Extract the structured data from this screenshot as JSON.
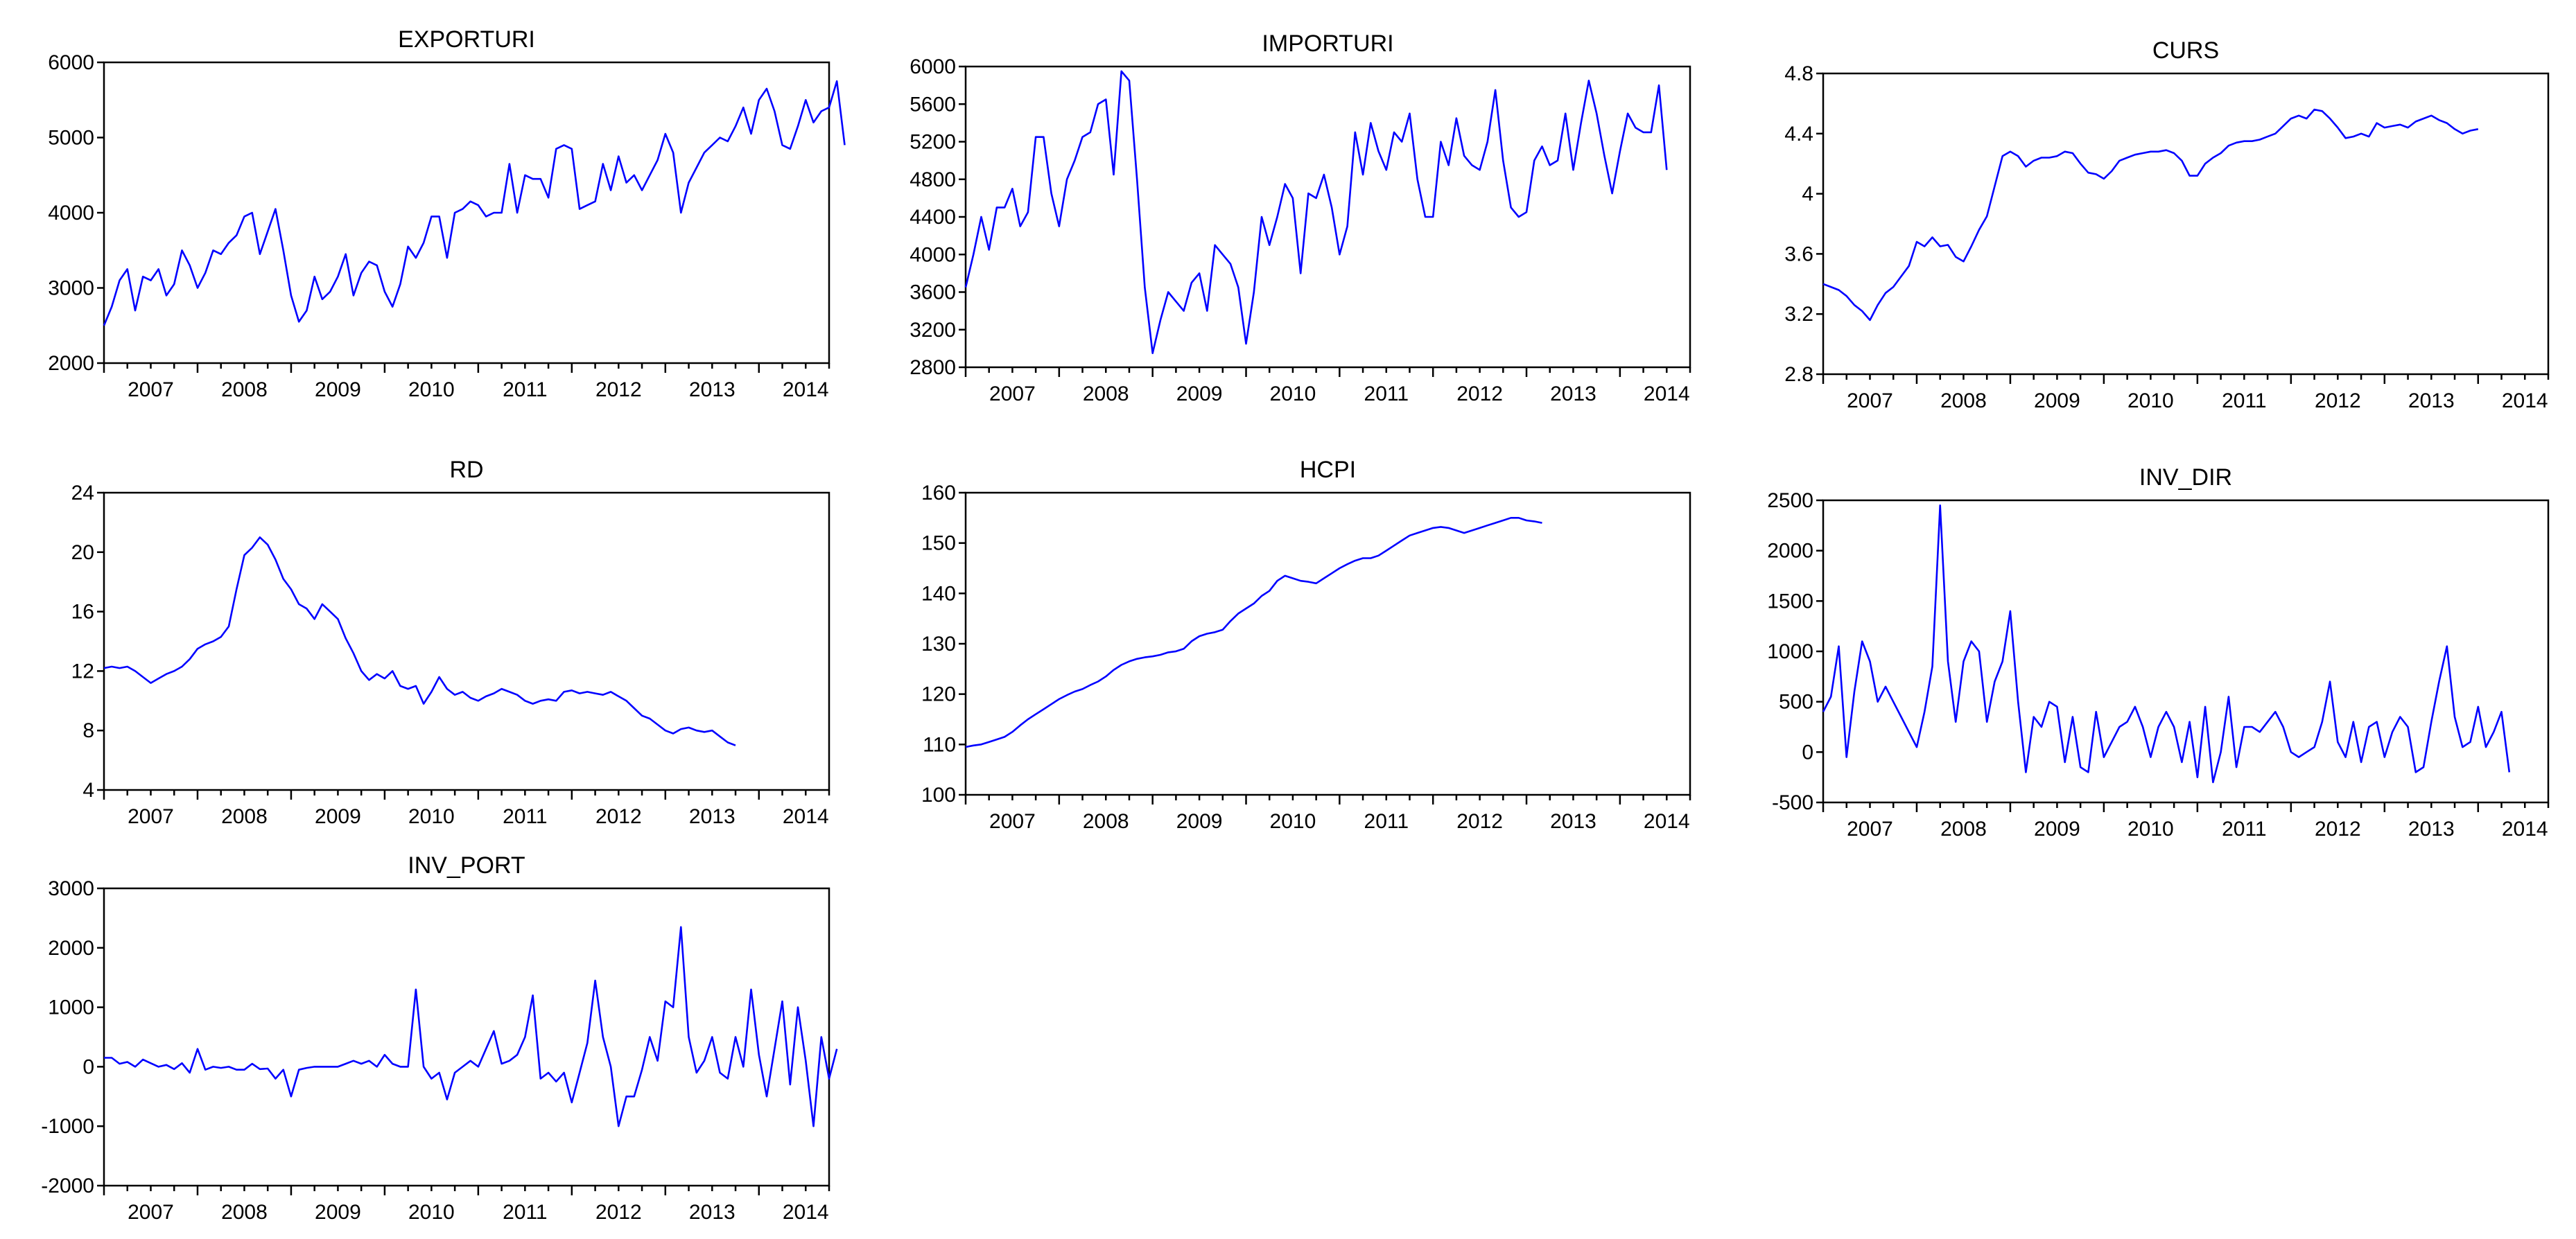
{
  "chart_data": [
    {
      "type": "line",
      "title": "EXPORTURI",
      "xlabel": "",
      "ylabel": "",
      "x_range": [
        2007.0,
        2014.75
      ],
      "ylim": [
        2000,
        6000
      ],
      "yticks": [
        2000,
        3000,
        4000,
        5000,
        6000
      ],
      "xticks": [
        "2007",
        "2008",
        "2009",
        "2010",
        "2011",
        "2012",
        "2013",
        "2014"
      ],
      "grid": false,
      "color": "#0000ff",
      "start": "2007-01",
      "frequency": "monthly",
      "values": [
        2500,
        2750,
        3100,
        3250,
        2700,
        3150,
        3100,
        3250,
        2900,
        3050,
        3500,
        3300,
        3000,
        3200,
        3500,
        3450,
        3600,
        3700,
        3950,
        4000,
        3450,
        3750,
        4050,
        3500,
        2900,
        2550,
        2700,
        3150,
        2850,
        2950,
        3150,
        3450,
        2900,
        3200,
        3350,
        3300,
        2950,
        2750,
        3050,
        3550,
        3400,
        3600,
        3950,
        3950,
        3400,
        4000,
        4050,
        4150,
        4100,
        3950,
        4000,
        4000,
        4650,
        4000,
        4500,
        4450,
        4450,
        4200,
        4850,
        4900,
        4850,
        4050,
        4100,
        4150,
        4650,
        4300,
        4750,
        4400,
        4500,
        4300,
        4500,
        4700,
        5050,
        4800,
        4000,
        4400,
        4600,
        4800,
        4900,
        5000,
        4950,
        5150,
        5400,
        5050,
        5500,
        5650,
        5350,
        4900,
        4850,
        5150,
        5500,
        5200,
        5350,
        5400,
        5750,
        4900
      ]
    },
    {
      "type": "line",
      "title": "IMPORTURI",
      "xlabel": "",
      "ylabel": "",
      "x_range": [
        2007.0,
        2014.75
      ],
      "ylim": [
        2800,
        6000
      ],
      "yticks": [
        2800,
        3200,
        3600,
        4000,
        4400,
        4800,
        5200,
        5600,
        6000
      ],
      "xticks": [
        "2007",
        "2008",
        "2009",
        "2010",
        "2011",
        "2012",
        "2013",
        "2014"
      ],
      "grid": false,
      "color": "#0000ff",
      "start": "2007-01",
      "frequency": "monthly",
      "values": [
        3650,
        4000,
        4400,
        4050,
        4500,
        4500,
        4700,
        4300,
        4450,
        5250,
        5250,
        4650,
        4300,
        4800,
        5000,
        5250,
        5300,
        5600,
        5650,
        4850,
        5950,
        5850,
        4800,
        3650,
        2950,
        3300,
        3600,
        3500,
        3400,
        3700,
        3800,
        3400,
        4100,
        4000,
        3900,
        3650,
        3050,
        3600,
        4400,
        4100,
        4400,
        4750,
        4600,
        3800,
        4650,
        4600,
        4850,
        4500,
        4000,
        4300,
        5300,
        4850,
        5400,
        5100,
        4900,
        5300,
        5200,
        5500,
        4800,
        4400,
        4400,
        5200,
        4950,
        5450,
        5050,
        4950,
        4900,
        5200,
        5750,
        5000,
        4500,
        4400,
        4450,
        5000,
        5150,
        4950,
        5000,
        5500,
        4900,
        5400,
        5850,
        5500,
        5050,
        4650,
        5100,
        5500,
        5350,
        5300,
        5300,
        5800,
        4900
      ]
    },
    {
      "type": "line",
      "title": "CURS",
      "xlabel": "",
      "ylabel": "",
      "x_range": [
        2007.0,
        2014.75
      ],
      "ylim": [
        2.8,
        4.8
      ],
      "yticks": [
        2.8,
        3.2,
        3.6,
        4.0,
        4.4,
        4.8
      ],
      "xticks": [
        "2007",
        "2008",
        "2009",
        "2010",
        "2011",
        "2012",
        "2013",
        "2014"
      ],
      "grid": false,
      "color": "#0000ff",
      "start": "2007-01",
      "frequency": "monthly",
      "values": [
        3.4,
        3.38,
        3.36,
        3.32,
        3.26,
        3.22,
        3.16,
        3.26,
        3.34,
        3.38,
        3.45,
        3.52,
        3.68,
        3.65,
        3.71,
        3.65,
        3.66,
        3.58,
        3.55,
        3.65,
        3.76,
        3.85,
        4.05,
        4.25,
        4.28,
        4.25,
        4.18,
        4.22,
        4.24,
        4.24,
        4.25,
        4.28,
        4.27,
        4.2,
        4.14,
        4.13,
        4.1,
        4.15,
        4.22,
        4.24,
        4.26,
        4.27,
        4.28,
        4.28,
        4.29,
        4.27,
        4.22,
        4.12,
        4.12,
        4.2,
        4.24,
        4.27,
        4.32,
        4.34,
        4.35,
        4.35,
        4.36,
        4.38,
        4.4,
        4.45,
        4.5,
        4.52,
        4.5,
        4.56,
        4.55,
        4.5,
        4.44,
        4.37,
        4.38,
        4.4,
        4.38,
        4.47,
        4.44,
        4.45,
        4.46,
        4.44,
        4.48,
        4.5,
        4.52,
        4.49,
        4.47,
        4.43,
        4.4,
        4.42,
        4.43
      ]
    },
    {
      "type": "line",
      "title": "RD",
      "xlabel": "",
      "ylabel": "",
      "x_range": [
        2007.0,
        2014.75
      ],
      "ylim": [
        4,
        24
      ],
      "yticks": [
        4,
        8,
        12,
        16,
        20,
        24
      ],
      "xticks": [
        "2007",
        "2008",
        "2009",
        "2010",
        "2011",
        "2012",
        "2013",
        "2014"
      ],
      "grid": false,
      "color": "#0000ff",
      "start": "2007-01",
      "frequency": "monthly",
      "values": [
        12.2,
        12.3,
        12.2,
        12.3,
        12.0,
        11.6,
        11.2,
        11.5,
        11.8,
        12.0,
        12.3,
        12.8,
        13.5,
        13.8,
        14.0,
        14.3,
        15.0,
        17.5,
        19.8,
        20.3,
        21.0,
        20.5,
        19.5,
        18.2,
        17.5,
        16.5,
        16.2,
        15.5,
        16.5,
        16.0,
        15.5,
        14.2,
        13.2,
        12.0,
        11.4,
        11.8,
        11.5,
        12.0,
        11.0,
        10.8,
        11.0,
        9.8,
        10.6,
        11.6,
        10.8,
        10.4,
        10.6,
        10.2,
        10.0,
        10.3,
        10.5,
        10.8,
        10.6,
        10.4,
        10.0,
        9.8,
        10.0,
        10.1,
        10.0,
        10.6,
        10.7,
        10.5,
        10.6,
        10.5,
        10.4,
        10.6,
        10.3,
        10.0,
        9.5,
        9.0,
        8.8,
        8.4,
        8.0,
        7.8,
        8.1,
        8.2,
        8.0,
        7.9,
        8.0,
        7.6,
        7.2,
        7.0
      ]
    },
    {
      "type": "line",
      "title": "HCPI",
      "xlabel": "",
      "ylabel": "",
      "x_range": [
        2007.0,
        2014.75
      ],
      "ylim": [
        100,
        160
      ],
      "yticks": [
        100,
        110,
        120,
        130,
        140,
        150,
        160
      ],
      "xticks": [
        "2007",
        "2008",
        "2009",
        "2010",
        "2011",
        "2012",
        "2013",
        "2014"
      ],
      "grid": false,
      "color": "#0000ff",
      "start": "2007-01",
      "frequency": "monthly",
      "values": [
        109.5,
        109.8,
        110.0,
        110.5,
        111.0,
        111.5,
        112.5,
        113.8,
        115.0,
        116.0,
        117.0,
        118.0,
        119.0,
        119.8,
        120.5,
        121.0,
        121.8,
        122.5,
        123.5,
        124.8,
        125.8,
        126.5,
        127.0,
        127.3,
        127.5,
        127.8,
        128.3,
        128.5,
        129.0,
        130.5,
        131.5,
        132.0,
        132.3,
        132.8,
        134.5,
        136.0,
        137.0,
        138.0,
        139.5,
        140.5,
        142.5,
        143.5,
        143.0,
        142.5,
        142.3,
        142.0,
        143.0,
        144.0,
        145.0,
        145.8,
        146.5,
        147.0,
        147.0,
        147.5,
        148.5,
        149.5,
        150.5,
        151.5,
        152.0,
        152.5,
        153.0,
        153.2,
        153.0,
        152.5,
        152.0,
        152.5,
        153.0,
        153.5,
        154.0,
        154.5,
        155.0,
        155.0,
        154.5,
        154.3,
        154.0
      ]
    },
    {
      "type": "line",
      "title": "INV_DIR",
      "xlabel": "",
      "ylabel": "",
      "x_range": [
        2007.0,
        2014.75
      ],
      "ylim": [
        -500,
        2500
      ],
      "yticks": [
        -500,
        0,
        500,
        1000,
        1500,
        2000,
        2500
      ],
      "xticks": [
        "2007",
        "2008",
        "2009",
        "2010",
        "2011",
        "2012",
        "2013",
        "2014"
      ],
      "grid": false,
      "color": "#0000ff",
      "start": "2007-01",
      "frequency": "monthly",
      "values": [
        400,
        550,
        1050,
        -50,
        600,
        1100,
        900,
        500,
        650,
        500,
        350,
        200,
        50,
        400,
        850,
        2450,
        900,
        300,
        900,
        1100,
        1000,
        300,
        700,
        900,
        1400,
        500,
        -200,
        350,
        250,
        500,
        450,
        -100,
        350,
        -150,
        -200,
        400,
        -50,
        100,
        250,
        300,
        450,
        250,
        -50,
        250,
        400,
        250,
        -100,
        300,
        -250,
        450,
        -300,
        0,
        550,
        -150,
        250,
        250,
        200,
        300,
        400,
        250,
        0,
        -50,
        0,
        50,
        300,
        700,
        100,
        -50,
        300,
        -100,
        250,
        300,
        -50,
        200,
        350,
        250,
        -200,
        -150,
        300,
        700,
        1050,
        350,
        50,
        100,
        450,
        50,
        200,
        400,
        -200
      ]
    },
    {
      "type": "line",
      "title": "INV_PORT",
      "xlabel": "",
      "ylabel": "",
      "x_range": [
        2007.0,
        2014.75
      ],
      "ylim": [
        -2000,
        3000
      ],
      "yticks": [
        -2000,
        -1000,
        0,
        1000,
        2000,
        3000
      ],
      "xticks": [
        "2007",
        "2008",
        "2009",
        "2010",
        "2011",
        "2012",
        "2013",
        "2014"
      ],
      "grid": false,
      "color": "#0000ff",
      "start": "2007-01",
      "frequency": "monthly",
      "values": [
        150,
        150,
        50,
        80,
        0,
        120,
        60,
        0,
        30,
        -40,
        60,
        -100,
        300,
        -50,
        0,
        -20,
        0,
        -50,
        -50,
        50,
        -40,
        -30,
        -200,
        -50,
        -500,
        -50,
        -20,
        0,
        0,
        0,
        0,
        50,
        100,
        50,
        100,
        0,
        200,
        50,
        0,
        0,
        1300,
        0,
        -200,
        -100,
        -550,
        -100,
        0,
        100,
        0,
        300,
        600,
        50,
        100,
        200,
        500,
        1200,
        -200,
        -100,
        -250,
        -100,
        -600,
        -100,
        400,
        1450,
        500,
        0,
        -1000,
        -500,
        -500,
        -50,
        500,
        100,
        1100,
        1000,
        2350,
        500,
        -100,
        100,
        500,
        -100,
        -200,
        500,
        0,
        1300,
        200,
        -500,
        300,
        1100,
        -300,
        1000,
        100,
        -1000,
        500,
        -200,
        300
      ]
    }
  ]
}
